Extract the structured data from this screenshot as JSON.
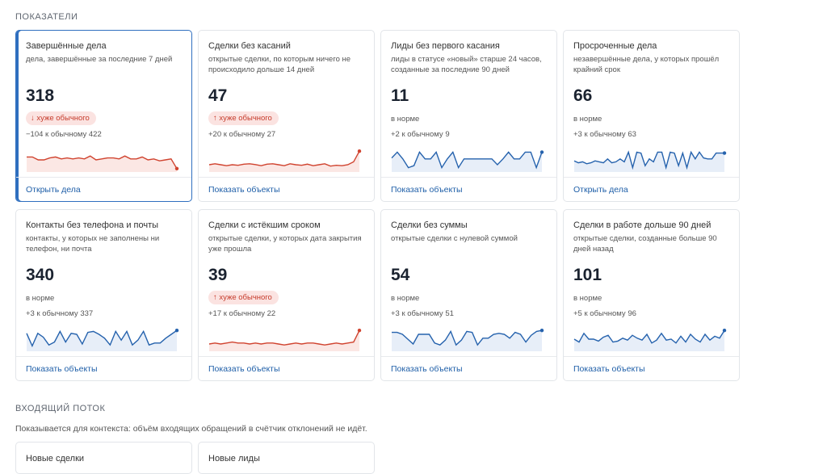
{
  "indicators": {
    "section_title": "ПОКАЗАТЕЛИ",
    "cards": [
      {
        "title": "Завершённые дела",
        "description": "дела, завершённые за последние 7 дней",
        "value": "318",
        "badge": "↓ хуже обычного",
        "status": "",
        "comparison": "−104 к обычному 422",
        "link": "Открыть дела",
        "trend": "bad",
        "spark": [
          0.65,
          0.65,
          0.5,
          0.5,
          0.6,
          0.65,
          0.55,
          0.6,
          0.55,
          0.6,
          0.55,
          0.7,
          0.5,
          0.55,
          0.6,
          0.6,
          0.55,
          0.7,
          0.55,
          0.55,
          0.65,
          0.5,
          0.55,
          0.45,
          0.5,
          0.55,
          0.05
        ],
        "colors": {
          "line": "#d0432f",
          "fill": "#fbe7e4"
        }
      },
      {
        "title": "Сделки без касаний",
        "description": "открытые сделки, по которым ничего не происходило дольше 14 дней",
        "value": "47",
        "badge": "↑ хуже обычного",
        "status": "",
        "comparison": "+20 к обычному 27",
        "link": "Показать объекты",
        "trend": "bad",
        "spark": [
          0.25,
          0.3,
          0.25,
          0.2,
          0.25,
          0.22,
          0.28,
          0.3,
          0.26,
          0.2,
          0.28,
          0.3,
          0.25,
          0.2,
          0.3,
          0.25,
          0.22,
          0.28,
          0.2,
          0.25,
          0.3,
          0.18,
          0.22,
          0.2,
          0.25,
          0.4,
          0.95
        ],
        "colors": {
          "line": "#d0432f",
          "fill": "#fbe7e4"
        }
      },
      {
        "title": "Лиды без первого касания",
        "description": "лиды в статусе «новый» старше 24 часов, созданные за последние 90 дней",
        "value": "11",
        "badge": "",
        "status": "в норме",
        "comparison": "+2 к обычному 9",
        "link": "Показать объекты",
        "trend": "normal",
        "spark": [
          0.6,
          0.9,
          0.55,
          0.1,
          0.2,
          0.9,
          0.55,
          0.55,
          0.9,
          0.1,
          0.55,
          0.9,
          0.1,
          0.55,
          0.55,
          0.55,
          0.55,
          0.55,
          0.55,
          0.25,
          0.55,
          0.9,
          0.55,
          0.55,
          0.9,
          0.9,
          0.1,
          0.9
        ],
        "colors": {
          "line": "#2562ad",
          "fill": "#e7eef8"
        }
      },
      {
        "title": "Просроченные дела",
        "description": "незавершённые дела, у которых прошёл крайний срок",
        "value": "66",
        "badge": "",
        "status": "в норме",
        "comparison": "+3 к обычному 63",
        "link": "Открыть дела",
        "trend": "normal",
        "spark": [
          0.45,
          0.35,
          0.4,
          0.3,
          0.35,
          0.45,
          0.4,
          0.35,
          0.55,
          0.35,
          0.4,
          0.55,
          0.4,
          0.9,
          0.1,
          0.9,
          0.85,
          0.2,
          0.55,
          0.4,
          0.9,
          0.9,
          0.1,
          0.9,
          0.85,
          0.2,
          0.85,
          0.1,
          0.9,
          0.55,
          0.9,
          0.6,
          0.55,
          0.55,
          0.85,
          0.85,
          0.85
        ],
        "colors": {
          "line": "#2562ad",
          "fill": "#e7eef8"
        }
      },
      {
        "title": "Контакты без телефона и почты",
        "description": "контакты, у которых не заполнены ни телефон, ни почта",
        "value": "340",
        "badge": "",
        "status": "в норме",
        "comparison": "+3 к обычному 337",
        "link": "Показать объекты",
        "trend": "normal",
        "spark": [
          0.8,
          0.15,
          0.8,
          0.6,
          0.2,
          0.35,
          0.9,
          0.35,
          0.8,
          0.75,
          0.25,
          0.85,
          0.9,
          0.75,
          0.55,
          0.2,
          0.9,
          0.45,
          0.9,
          0.2,
          0.45,
          0.9,
          0.2,
          0.3,
          0.3,
          0.55,
          0.75,
          0.95
        ],
        "colors": {
          "line": "#2562ad",
          "fill": "#e7eef8"
        }
      },
      {
        "title": "Сделки с истёкшим сроком",
        "description": "открытые сделки, у которых дата закрытия уже прошла",
        "value": "39",
        "badge": "↑ хуже обычного",
        "status": "",
        "comparison": "+17 к обычному 22",
        "link": "Показать объекты",
        "trend": "bad",
        "spark": [
          0.25,
          0.3,
          0.25,
          0.3,
          0.35,
          0.3,
          0.3,
          0.25,
          0.3,
          0.25,
          0.3,
          0.3,
          0.25,
          0.2,
          0.25,
          0.3,
          0.25,
          0.3,
          0.3,
          0.25,
          0.2,
          0.25,
          0.3,
          0.25,
          0.3,
          0.35,
          0.95
        ],
        "colors": {
          "line": "#d0432f",
          "fill": "#fbe7e4"
        }
      },
      {
        "title": "Сделки без суммы",
        "description": "открытые сделки с нулевой суммой",
        "value": "54",
        "badge": "",
        "status": "в норме",
        "comparison": "+3 к обычному 51",
        "link": "Показать объекты",
        "trend": "normal",
        "spark": [
          0.85,
          0.85,
          0.75,
          0.5,
          0.25,
          0.75,
          0.75,
          0.75,
          0.3,
          0.2,
          0.45,
          0.9,
          0.2,
          0.45,
          0.9,
          0.85,
          0.2,
          0.55,
          0.55,
          0.75,
          0.8,
          0.75,
          0.55,
          0.85,
          0.75,
          0.35,
          0.7,
          0.9,
          0.95
        ],
        "colors": {
          "line": "#2562ad",
          "fill": "#e7eef8"
        }
      },
      {
        "title": "Сделки в работе дольше 90 дней",
        "description": "открытые сделки, созданные больше 90 дней назад",
        "value": "101",
        "badge": "",
        "status": "в норме",
        "comparison": "+5 к обычному 96",
        "link": "Показать объекты",
        "trend": "normal",
        "spark": [
          0.5,
          0.35,
          0.8,
          0.5,
          0.5,
          0.4,
          0.6,
          0.7,
          0.35,
          0.4,
          0.55,
          0.45,
          0.7,
          0.55,
          0.45,
          0.75,
          0.3,
          0.45,
          0.8,
          0.45,
          0.5,
          0.3,
          0.65,
          0.35,
          0.75,
          0.5,
          0.35,
          0.75,
          0.45,
          0.65,
          0.55,
          0.95
        ],
        "colors": {
          "line": "#2562ad",
          "fill": "#e7eef8"
        }
      }
    ]
  },
  "incoming": {
    "section_title": "ВХОДЯЩИЙ ПОТОК",
    "subtitle": "Показывается для контекста: объём входящих обращений в счётчик отклонений не идёт.",
    "cards": [
      {
        "title": "Новые сделки"
      },
      {
        "title": "Новые лиды"
      }
    ]
  }
}
